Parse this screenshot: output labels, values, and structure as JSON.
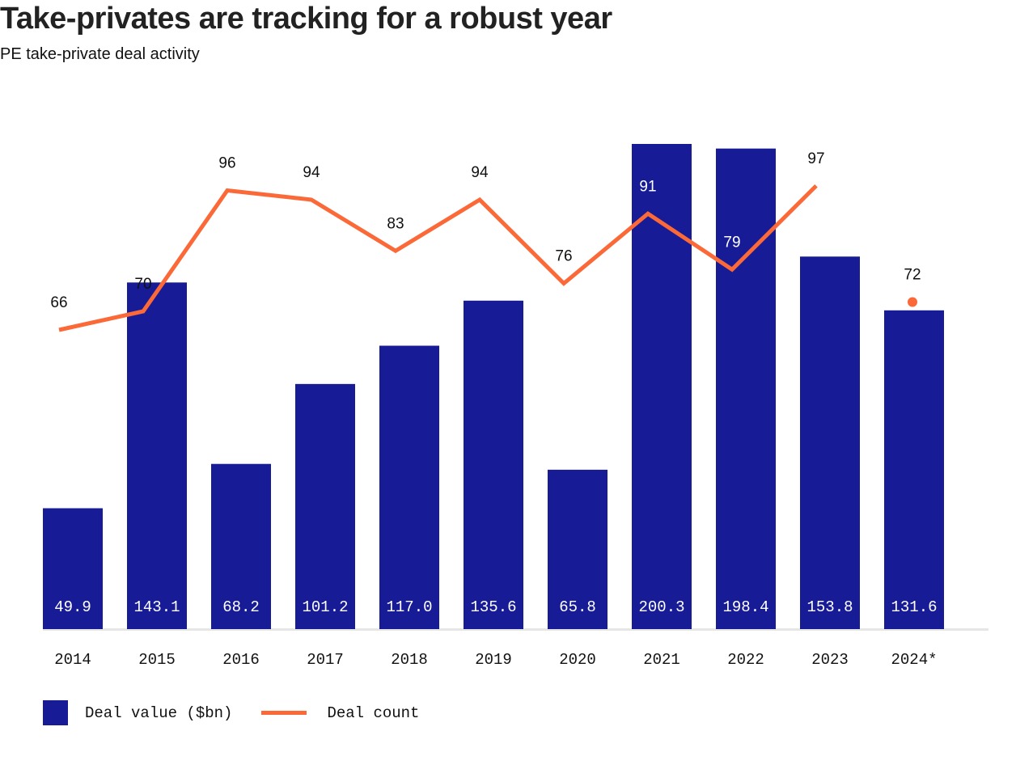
{
  "title": "Take-privates are tracking for a robust year",
  "subtitle": "PE take-private deal activity",
  "colors": {
    "bar": "#171b96",
    "line": "#fb6938",
    "baseline": "#e6e6e6"
  },
  "legend": {
    "bar_label": "Deal value ($bn)",
    "line_label": "Deal count"
  },
  "chart_data": {
    "type": "bar",
    "categories": [
      "2014",
      "2015",
      "2016",
      "2017",
      "2018",
      "2019",
      "2020",
      "2021",
      "2022",
      "2023",
      "2024*"
    ],
    "series": [
      {
        "name": "Deal value ($bn)",
        "type": "bar",
        "values": [
          49.9,
          143.1,
          68.2,
          101.2,
          117.0,
          135.6,
          65.8,
          200.3,
          198.4,
          153.8,
          131.6
        ]
      },
      {
        "name": "Deal count",
        "type": "line",
        "values": [
          66,
          70,
          96,
          94,
          83,
          94,
          76,
          91,
          79,
          97,
          72
        ],
        "line_breaks_before_last": true
      }
    ],
    "value_labels": [
      "49.9",
      "143.1",
      "68.2",
      "101.2",
      "117.0",
      "135.6",
      "65.8",
      "200.3",
      "198.4",
      "153.8",
      "131.6"
    ],
    "count_labels": [
      "66",
      "70",
      "96",
      "94",
      "83",
      "94",
      "76",
      "91",
      "79",
      "97",
      "72"
    ],
    "ylim_value": [
      0,
      200.3
    ],
    "legend_position": "bottom-left"
  }
}
